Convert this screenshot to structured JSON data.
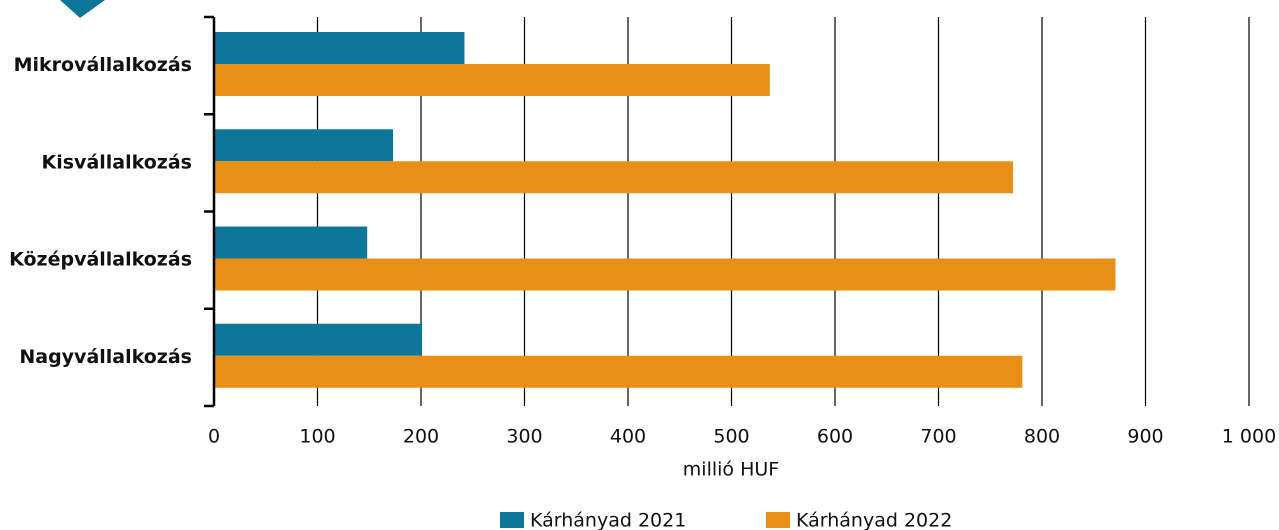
{
  "chart_data": {
    "type": "bar",
    "orientation": "horizontal",
    "categories": [
      "Mikrovállalkozás",
      "Kisvállalkozás",
      "Középvállalkozás",
      "Nagyvállalkozás"
    ],
    "series": [
      {
        "name": "Kárhányad 2021",
        "color": "#0e7799",
        "values": [
          242,
          173,
          148,
          201
        ]
      },
      {
        "name": "Kárhányad 2022",
        "color": "#e88f17",
        "values": [
          537,
          772,
          871,
          781
        ]
      }
    ],
    "xlabel": "millió HUF",
    "xlim": [
      0,
      1000
    ],
    "xticks": [
      0,
      100,
      200,
      300,
      400,
      500,
      600,
      700,
      800,
      900,
      {
        "value": 1000,
        "label": "1 000"
      }
    ],
    "grid": true
  }
}
